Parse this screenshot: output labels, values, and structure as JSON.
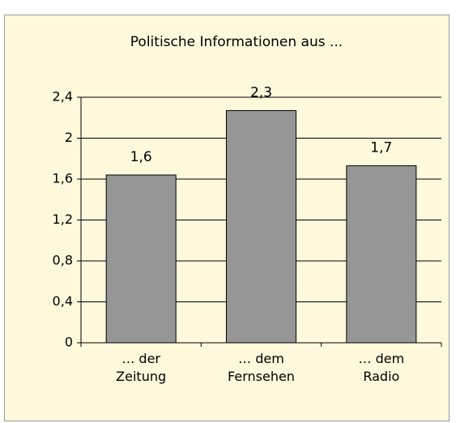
{
  "chart_data": {
    "type": "bar",
    "title": "Politische Informationen aus ...",
    "categories": [
      "… der Zeitung",
      "… dem Fernsehen",
      "… dem Radio"
    ],
    "values": [
      1.64,
      2.27,
      1.73
    ],
    "value_labels": [
      "1,6",
      "2,3",
      "1,7"
    ],
    "color": "#969696",
    "ylim": [
      0,
      2.4
    ],
    "yticks": [
      0,
      {
        "value": 0.4,
        "label": "0,4"
      },
      {
        "value": 0.8,
        "label": "0,8"
      },
      {
        "value": 1.2,
        "label": "1,2"
      },
      {
        "value": 1.6,
        "label": "1,6"
      },
      2,
      {
        "value": 2.4,
        "label": "2,4"
      }
    ],
    "grid": true
  }
}
